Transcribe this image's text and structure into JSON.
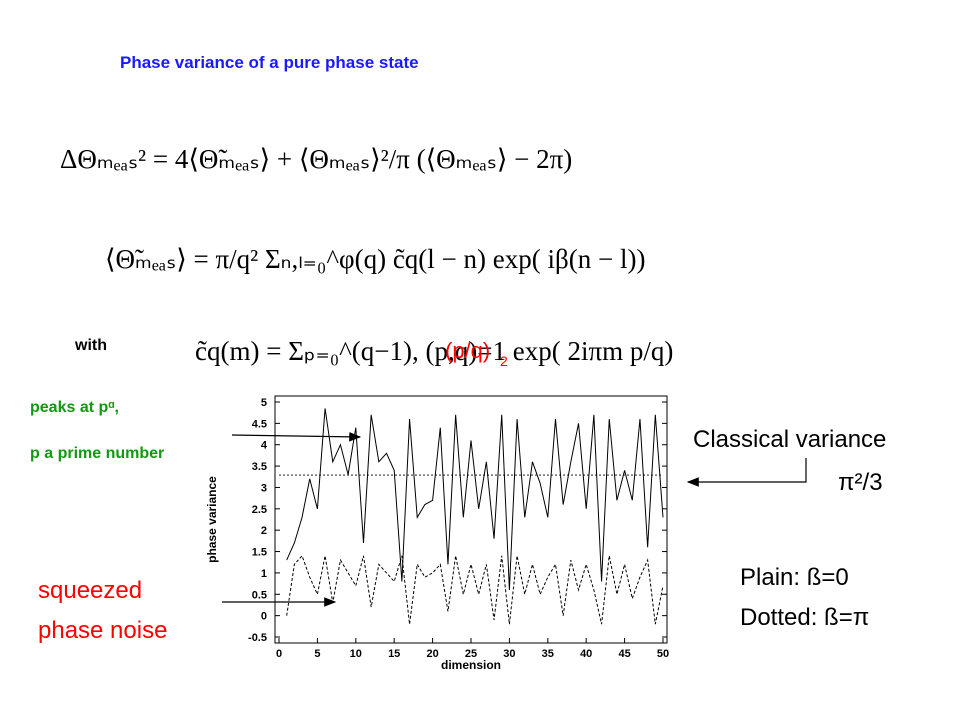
{
  "title": "Phase variance of a pure phase state",
  "equations": [
    "ΔΘₘₑₐₛ² = 4⟨Θ̃ₘₑₐₛ⟩ + ⟨Θₘₑₐₛ⟩²/π (⟨Θₘₑₐₛ⟩ − 2π)",
    "⟨Θ̃ₘₑₐₛ⟩ = π/q² Σₙ,ₗ₌₀^φ(q) c̃q(l − n) exp( iβ(n − l))",
    "c̃q(m) = Σₚ₌₀^(q−1), (p,q)=1          exp( 2iπm p/q)"
  ],
  "with": "with",
  "weight_base": "(p/q)",
  "weight_exp": "2",
  "peaks_note": [
    "peaks at pᵅ,",
    "p a prime number"
  ],
  "classical_note": [
    "Classical variance",
    "π²/3"
  ],
  "squeezed_note": [
    "squeezed",
    "phase noise"
  ],
  "legend_note": [
    "Plain: ß=0",
    "Dotted: ß=π"
  ],
  "chart_data": {
    "type": "line",
    "xlabel": "dimension",
    "ylabel": "phase variance",
    "x": [
      1,
      2,
      3,
      4,
      5,
      6,
      7,
      8,
      9,
      10,
      11,
      12,
      13,
      14,
      15,
      16,
      17,
      18,
      19,
      20,
      21,
      22,
      23,
      24,
      25,
      26,
      27,
      28,
      29,
      30,
      31,
      32,
      33,
      34,
      35,
      36,
      37,
      38,
      39,
      40,
      41,
      42,
      43,
      44,
      45,
      46,
      47,
      48,
      49,
      50
    ],
    "series": [
      {
        "color": "#000000",
        "dash": false,
        "values": [
          1.3,
          1.7,
          2.3,
          3.2,
          2.5,
          4.85,
          3.6,
          4.0,
          3.3,
          4.4,
          1.7,
          4.7,
          3.6,
          3.8,
          3.4,
          0.8,
          4.6,
          2.3,
          2.6,
          2.7,
          4.4,
          1.2,
          4.7,
          2.3,
          4.1,
          2.5,
          3.6,
          1.8,
          4.7,
          0.6,
          4.6,
          2.3,
          3.6,
          3.1,
          2.3,
          4.6,
          2.6,
          3.6,
          4.5,
          2.5,
          4.7,
          0.8,
          4.6,
          2.7,
          3.4,
          2.7,
          4.6,
          1.6,
          4.7,
          2.3
        ]
      },
      {
        "color": "#000000",
        "dash": true,
        "values": [
          0.0,
          1.2,
          1.4,
          0.9,
          0.5,
          1.4,
          0.3,
          1.3,
          1.0,
          0.7,
          1.4,
          0.2,
          1.2,
          1.0,
          0.8,
          1.4,
          -0.2,
          1.2,
          0.9,
          1.0,
          1.2,
          0.1,
          1.4,
          0.5,
          1.2,
          0.5,
          1.2,
          -0.1,
          1.4,
          -0.2,
          1.4,
          0.5,
          1.2,
          0.5,
          0.9,
          1.2,
          0.0,
          1.3,
          0.6,
          1.2,
          0.6,
          -0.2,
          1.4,
          0.5,
          1.2,
          0.4,
          0.9,
          1.3,
          -0.2,
          0.7
        ]
      }
    ],
    "reference_line": 3.29,
    "xlim": [
      0,
      50
    ],
    "xticks": [
      0,
      5,
      10,
      15,
      20,
      25,
      30,
      35,
      40,
      45,
      50
    ],
    "ylim": [
      -0.5,
      5
    ],
    "yticks": [
      -0.5,
      0,
      0.5,
      1,
      1.5,
      2,
      2.5,
      3,
      3.5,
      4,
      4.5,
      5
    ]
  }
}
